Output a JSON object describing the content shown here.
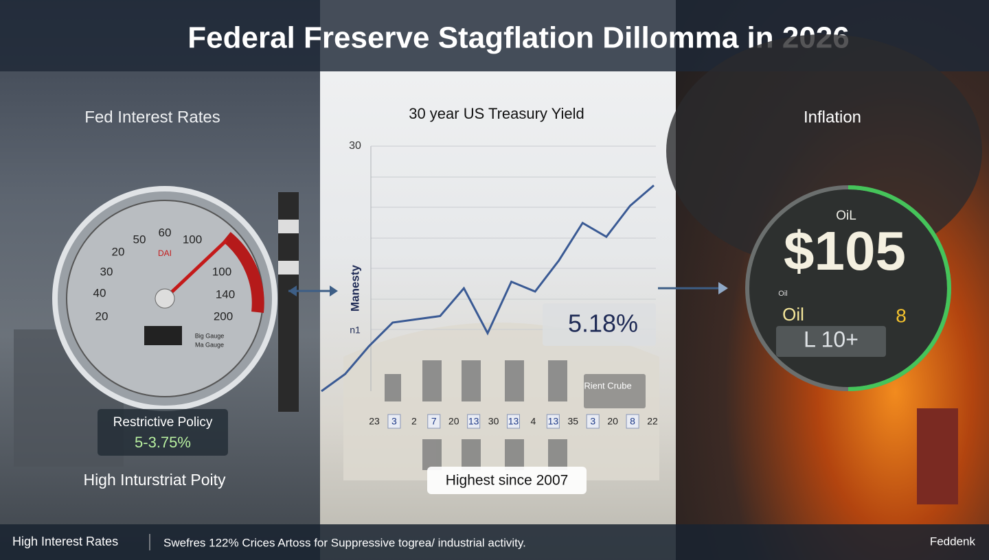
{
  "header": {
    "title": "Federal Freserve Stagflation Dillomma in 2026"
  },
  "left_panel": {
    "title": "Fed Interest Rates",
    "gauge_labels": [
      "60",
      "50",
      "100",
      "20",
      "DAI",
      "30",
      "100",
      "40",
      "140",
      "20",
      "200",
      "Big Gauge",
      "Ma Gauge"
    ],
    "policy_label": "Restrictive Policy",
    "policy_rate": "5-3.75%",
    "caption": "High Inturstriat Poity"
  },
  "middle_panel": {
    "title": "30 year US Treasury Yield",
    "axis_label": "Manesty",
    "side_label": "n1",
    "ylim": [
      0,
      30
    ],
    "yticks": [
      30
    ],
    "values": [
      0,
      2.1,
      5.5,
      8.4,
      8.8,
      9.2,
      12.6,
      7.1,
      13.4,
      12.2,
      16.0,
      20.6,
      18.9,
      22.7,
      25.2
    ],
    "x_labels": [
      "23",
      "3",
      "2",
      "7",
      "20",
      "13",
      "30",
      "13",
      "4",
      "13",
      "35",
      "3",
      "20",
      "8",
      "22"
    ],
    "yield_value": "5.18%",
    "note": "Rient Crube",
    "caption": "Highest since 2007"
  },
  "right_panel": {
    "title": "Inflation",
    "gauge_top": "OiL",
    "price": "$105",
    "small_label": "Oil",
    "oil_label": "Oil",
    "oil_value": "8",
    "readout": "L 10+"
  },
  "footer": {
    "left": "High Interest Rates",
    "middle": "Swefres 122% Crices Artoss for  Suppressive togrea/ industrial activity.",
    "right": "Feddenk"
  }
}
